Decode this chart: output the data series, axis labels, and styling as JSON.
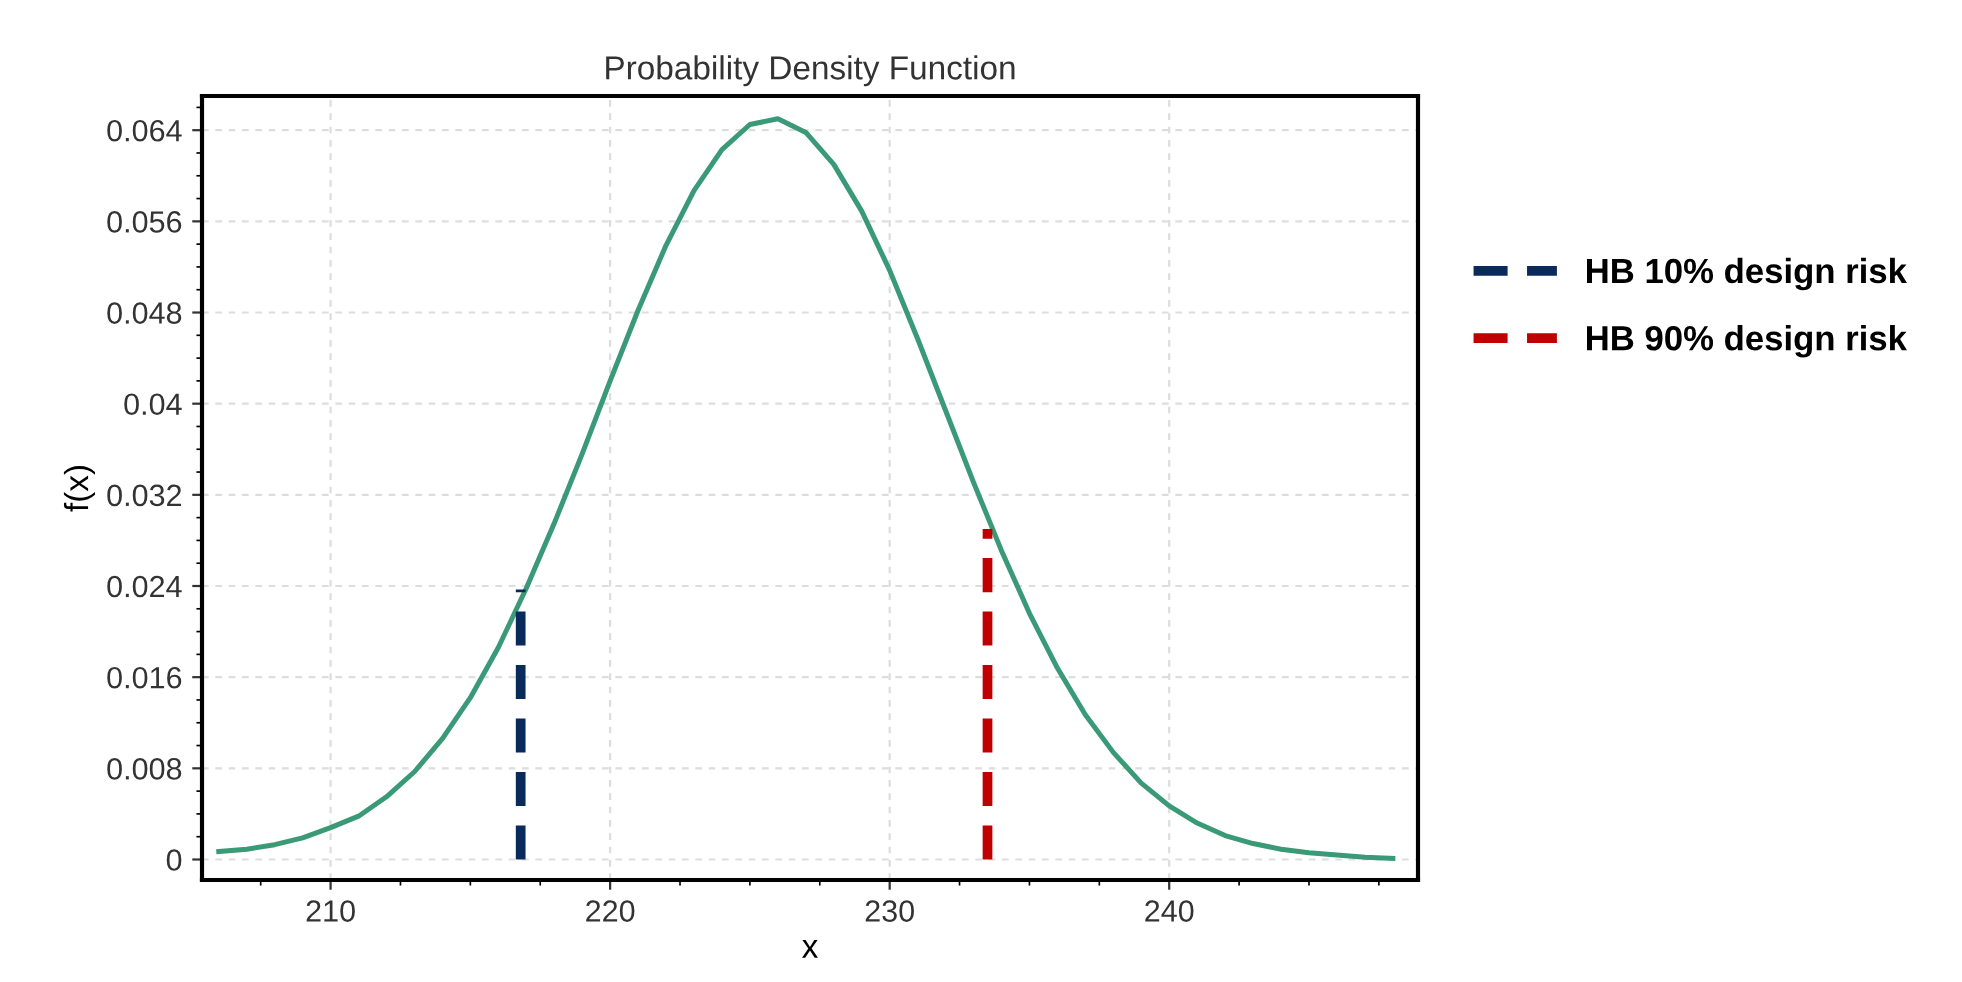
{
  "chart_data": {
    "type": "line",
    "title": "Probability Density Function",
    "xlabel": "x",
    "ylabel": "f(x)",
    "xlim": [
      205.4,
      248.9
    ],
    "xticks": [
      210,
      220,
      230,
      240
    ],
    "ylim": [
      -0.0018,
      0.067
    ],
    "yticks": [
      0,
      0.008,
      0.016,
      0.024,
      0.032,
      0.04,
      0.048,
      0.056,
      0.064
    ],
    "grid": true,
    "legend": "right",
    "marker": "none",
    "series": [
      {
        "color": "#3a9a78",
        "line_style": "solid",
        "x": [
          206,
          207,
          208,
          209,
          210,
          211,
          212,
          213,
          214,
          215,
          216,
          217,
          218,
          219,
          220,
          221,
          222,
          223,
          224,
          225,
          226,
          227,
          228,
          229,
          230,
          231,
          232,
          233,
          234,
          235,
          236,
          237,
          238,
          239,
          240,
          241,
          242,
          243,
          244,
          245,
          246,
          247,
          248
        ],
        "values": [
          0.0007,
          0.0009,
          0.0013,
          0.0019,
          0.0028,
          0.0038,
          0.0055,
          0.0077,
          0.0106,
          0.0142,
          0.0186,
          0.0238,
          0.0295,
          0.0356,
          0.042,
          0.0482,
          0.0539,
          0.0587,
          0.0623,
          0.0645,
          0.065,
          0.0638,
          0.061,
          0.0569,
          0.0517,
          0.0457,
          0.0394,
          0.0331,
          0.0271,
          0.0216,
          0.0168,
          0.0127,
          0.0094,
          0.0067,
          0.0047,
          0.0032,
          0.0021,
          0.0014,
          0.0009,
          0.0006,
          0.0004,
          0.0002,
          0.0001
        ]
      },
      {
        "name": "HB 10% design risk",
        "color": "#0b2a5c",
        "line_style": "dashed",
        "x": [
          216.8,
          216.8
        ],
        "values": [
          0,
          0.0237
        ]
      },
      {
        "name": "HB 90% design risk",
        "color": "#c00000",
        "line_style": "dashed",
        "x": [
          233.5,
          233.5
        ],
        "values": [
          0,
          0.029
        ]
      }
    ]
  }
}
